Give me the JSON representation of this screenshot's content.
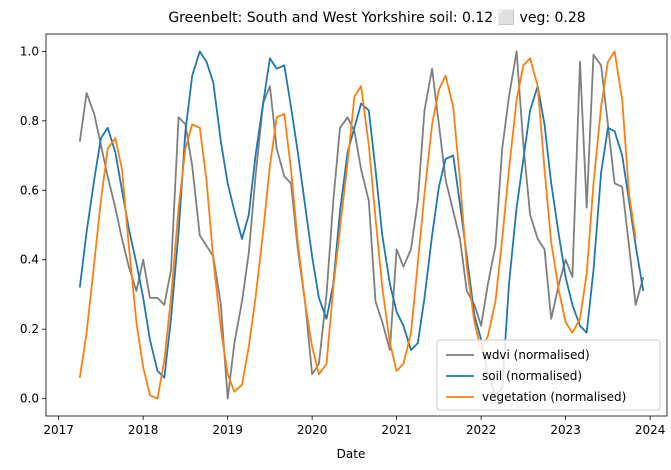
{
  "chart_data": {
    "type": "line",
    "title": "Greenbelt: South and West Yorkshire soil: 0.12 ⬜ veg: 0.28",
    "xlabel": "Date",
    "ylabel": "",
    "xlim": [
      2016.85,
      2024.2
    ],
    "ylim": [
      -0.05,
      1.05
    ],
    "x_ticks": [
      2017,
      2018,
      2019,
      2020,
      2021,
      2022,
      2023,
      2024
    ],
    "y_ticks": [
      0.0,
      0.2,
      0.4,
      0.6,
      0.8,
      1.0
    ],
    "x_tick_labels": [
      "2017",
      "2018",
      "2019",
      "2020",
      "2021",
      "2022",
      "2023",
      "2024"
    ],
    "y_tick_labels": [
      "0.0",
      "0.2",
      "0.4",
      "0.6",
      "0.8",
      "1.0"
    ],
    "legend_position": "lower-right",
    "grid": false,
    "series": [
      {
        "name": "wdvi (normalised)",
        "color": "#7f7f7f",
        "points": [
          [
            2017.25,
            0.74
          ],
          [
            2017.33,
            0.88
          ],
          [
            2017.42,
            0.82
          ],
          [
            2017.5,
            0.73
          ],
          [
            2017.58,
            0.64
          ],
          [
            2017.67,
            0.55
          ],
          [
            2017.75,
            0.46
          ],
          [
            2017.83,
            0.38
          ],
          [
            2017.92,
            0.31
          ],
          [
            2018.0,
            0.4
          ],
          [
            2018.08,
            0.29
          ],
          [
            2018.17,
            0.29
          ],
          [
            2018.25,
            0.27
          ],
          [
            2018.33,
            0.37
          ],
          [
            2018.42,
            0.81
          ],
          [
            2018.5,
            0.79
          ],
          [
            2018.58,
            0.67
          ],
          [
            2018.67,
            0.47
          ],
          [
            2018.75,
            0.44
          ],
          [
            2018.83,
            0.41
          ],
          [
            2018.92,
            0.27
          ],
          [
            2019.0,
            0.0
          ],
          [
            2019.08,
            0.16
          ],
          [
            2019.17,
            0.28
          ],
          [
            2019.25,
            0.42
          ],
          [
            2019.33,
            0.64
          ],
          [
            2019.42,
            0.85
          ],
          [
            2019.5,
            0.9
          ],
          [
            2019.58,
            0.72
          ],
          [
            2019.67,
            0.64
          ],
          [
            2019.75,
            0.62
          ],
          [
            2019.83,
            0.43
          ],
          [
            2019.92,
            0.27
          ],
          [
            2020.0,
            0.07
          ],
          [
            2020.08,
            0.1
          ],
          [
            2020.17,
            0.3
          ],
          [
            2020.25,
            0.57
          ],
          [
            2020.33,
            0.78
          ],
          [
            2020.42,
            0.81
          ],
          [
            2020.5,
            0.77
          ],
          [
            2020.58,
            0.66
          ],
          [
            2020.67,
            0.57
          ],
          [
            2020.75,
            0.28
          ],
          [
            2020.83,
            0.22
          ],
          [
            2020.92,
            0.14
          ],
          [
            2021.0,
            0.43
          ],
          [
            2021.08,
            0.38
          ],
          [
            2021.17,
            0.43
          ],
          [
            2021.25,
            0.57
          ],
          [
            2021.33,
            0.83
          ],
          [
            2021.42,
            0.95
          ],
          [
            2021.5,
            0.79
          ],
          [
            2021.58,
            0.63
          ],
          [
            2021.67,
            0.54
          ],
          [
            2021.75,
            0.46
          ],
          [
            2021.83,
            0.31
          ],
          [
            2021.92,
            0.27
          ],
          [
            2022.0,
            0.21
          ],
          [
            2022.08,
            0.33
          ],
          [
            2022.17,
            0.44
          ],
          [
            2022.25,
            0.72
          ],
          [
            2022.33,
            0.87
          ],
          [
            2022.42,
            1.0
          ],
          [
            2022.5,
            0.73
          ],
          [
            2022.58,
            0.53
          ],
          [
            2022.67,
            0.46
          ],
          [
            2022.75,
            0.43
          ],
          [
            2022.83,
            0.23
          ],
          [
            2022.92,
            0.33
          ],
          [
            2023.0,
            0.4
          ],
          [
            2023.08,
            0.35
          ],
          [
            2023.17,
            0.97
          ],
          [
            2023.25,
            0.55
          ],
          [
            2023.33,
            0.99
          ],
          [
            2023.42,
            0.96
          ],
          [
            2023.5,
            0.79
          ],
          [
            2023.58,
            0.62
          ],
          [
            2023.67,
            0.61
          ],
          [
            2023.75,
            0.44
          ],
          [
            2023.83,
            0.27
          ],
          [
            2023.92,
            0.35
          ]
        ]
      },
      {
        "name": "soil (normalised)",
        "color": "#1f77b4",
        "points": [
          [
            2017.25,
            0.32
          ],
          [
            2017.33,
            0.48
          ],
          [
            2017.42,
            0.63
          ],
          [
            2017.5,
            0.75
          ],
          [
            2017.58,
            0.78
          ],
          [
            2017.67,
            0.71
          ],
          [
            2017.75,
            0.6
          ],
          [
            2017.83,
            0.49
          ],
          [
            2017.92,
            0.39
          ],
          [
            2018.0,
            0.29
          ],
          [
            2018.08,
            0.17
          ],
          [
            2018.17,
            0.08
          ],
          [
            2018.25,
            0.06
          ],
          [
            2018.33,
            0.23
          ],
          [
            2018.42,
            0.48
          ],
          [
            2018.5,
            0.77
          ],
          [
            2018.58,
            0.93
          ],
          [
            2018.67,
            1.0
          ],
          [
            2018.75,
            0.97
          ],
          [
            2018.83,
            0.91
          ],
          [
            2018.92,
            0.74
          ],
          [
            2019.0,
            0.62
          ],
          [
            2019.08,
            0.54
          ],
          [
            2019.17,
            0.46
          ],
          [
            2019.25,
            0.53
          ],
          [
            2019.33,
            0.7
          ],
          [
            2019.42,
            0.85
          ],
          [
            2019.5,
            0.98
          ],
          [
            2019.58,
            0.95
          ],
          [
            2019.67,
            0.96
          ],
          [
            2019.75,
            0.84
          ],
          [
            2019.83,
            0.71
          ],
          [
            2019.92,
            0.55
          ],
          [
            2020.0,
            0.41
          ],
          [
            2020.08,
            0.29
          ],
          [
            2020.17,
            0.23
          ],
          [
            2020.25,
            0.33
          ],
          [
            2020.33,
            0.54
          ],
          [
            2020.42,
            0.71
          ],
          [
            2020.5,
            0.78
          ],
          [
            2020.58,
            0.85
          ],
          [
            2020.67,
            0.83
          ],
          [
            2020.75,
            0.66
          ],
          [
            2020.83,
            0.47
          ],
          [
            2020.92,
            0.33
          ],
          [
            2021.0,
            0.25
          ],
          [
            2021.08,
            0.21
          ],
          [
            2021.17,
            0.14
          ],
          [
            2021.25,
            0.16
          ],
          [
            2021.33,
            0.29
          ],
          [
            2021.42,
            0.47
          ],
          [
            2021.5,
            0.61
          ],
          [
            2021.58,
            0.69
          ],
          [
            2021.67,
            0.7
          ],
          [
            2021.75,
            0.56
          ],
          [
            2021.83,
            0.41
          ],
          [
            2021.92,
            0.24
          ],
          [
            2022.0,
            0.17
          ],
          [
            2022.08,
            0.07
          ],
          [
            2022.17,
            0.01
          ],
          [
            2022.25,
            0.03
          ],
          [
            2022.33,
            0.33
          ],
          [
            2022.42,
            0.55
          ],
          [
            2022.5,
            0.69
          ],
          [
            2022.58,
            0.83
          ],
          [
            2022.67,
            0.9
          ],
          [
            2022.75,
            0.79
          ],
          [
            2022.83,
            0.62
          ],
          [
            2022.92,
            0.47
          ],
          [
            2023.0,
            0.35
          ],
          [
            2023.08,
            0.27
          ],
          [
            2023.17,
            0.21
          ],
          [
            2023.25,
            0.19
          ],
          [
            2023.33,
            0.37
          ],
          [
            2023.42,
            0.65
          ],
          [
            2023.5,
            0.78
          ],
          [
            2023.58,
            0.77
          ],
          [
            2023.67,
            0.7
          ],
          [
            2023.75,
            0.57
          ],
          [
            2023.83,
            0.44
          ],
          [
            2023.92,
            0.31
          ]
        ]
      },
      {
        "name": "vegetation (normalised)",
        "color": "#ff7f0e",
        "points": [
          [
            2017.25,
            0.06
          ],
          [
            2017.33,
            0.19
          ],
          [
            2017.42,
            0.39
          ],
          [
            2017.5,
            0.57
          ],
          [
            2017.58,
            0.72
          ],
          [
            2017.67,
            0.75
          ],
          [
            2017.75,
            0.66
          ],
          [
            2017.83,
            0.44
          ],
          [
            2017.92,
            0.22
          ],
          [
            2018.0,
            0.09
          ],
          [
            2018.08,
            0.01
          ],
          [
            2018.17,
            0.0
          ],
          [
            2018.25,
            0.11
          ],
          [
            2018.33,
            0.29
          ],
          [
            2018.42,
            0.55
          ],
          [
            2018.5,
            0.72
          ],
          [
            2018.58,
            0.79
          ],
          [
            2018.67,
            0.78
          ],
          [
            2018.75,
            0.63
          ],
          [
            2018.83,
            0.4
          ],
          [
            2018.92,
            0.2
          ],
          [
            2019.0,
            0.07
          ],
          [
            2019.08,
            0.02
          ],
          [
            2019.17,
            0.04
          ],
          [
            2019.25,
            0.15
          ],
          [
            2019.33,
            0.29
          ],
          [
            2019.42,
            0.48
          ],
          [
            2019.5,
            0.67
          ],
          [
            2019.58,
            0.81
          ],
          [
            2019.67,
            0.82
          ],
          [
            2019.75,
            0.66
          ],
          [
            2019.83,
            0.45
          ],
          [
            2019.92,
            0.27
          ],
          [
            2020.0,
            0.15
          ],
          [
            2020.08,
            0.07
          ],
          [
            2020.17,
            0.1
          ],
          [
            2020.25,
            0.32
          ],
          [
            2020.33,
            0.49
          ],
          [
            2020.42,
            0.68
          ],
          [
            2020.5,
            0.87
          ],
          [
            2020.58,
            0.9
          ],
          [
            2020.67,
            0.73
          ],
          [
            2020.75,
            0.52
          ],
          [
            2020.83,
            0.32
          ],
          [
            2020.92,
            0.16
          ],
          [
            2021.0,
            0.08
          ],
          [
            2021.08,
            0.1
          ],
          [
            2021.17,
            0.19
          ],
          [
            2021.25,
            0.39
          ],
          [
            2021.33,
            0.59
          ],
          [
            2021.42,
            0.79
          ],
          [
            2021.5,
            0.89
          ],
          [
            2021.58,
            0.93
          ],
          [
            2021.67,
            0.84
          ],
          [
            2021.75,
            0.63
          ],
          [
            2021.83,
            0.38
          ],
          [
            2021.92,
            0.22
          ],
          [
            2022.0,
            0.14
          ],
          [
            2022.08,
            0.18
          ],
          [
            2022.17,
            0.28
          ],
          [
            2022.25,
            0.46
          ],
          [
            2022.33,
            0.66
          ],
          [
            2022.42,
            0.86
          ],
          [
            2022.5,
            0.96
          ],
          [
            2022.58,
            0.98
          ],
          [
            2022.67,
            0.9
          ],
          [
            2022.75,
            0.66
          ],
          [
            2022.83,
            0.45
          ],
          [
            2022.92,
            0.31
          ],
          [
            2023.0,
            0.22
          ],
          [
            2023.08,
            0.19
          ],
          [
            2023.17,
            0.23
          ],
          [
            2023.25,
            0.36
          ],
          [
            2023.33,
            0.62
          ],
          [
            2023.42,
            0.84
          ],
          [
            2023.5,
            0.97
          ],
          [
            2023.58,
            1.0
          ],
          [
            2023.67,
            0.86
          ],
          [
            2023.75,
            0.59
          ],
          [
            2023.83,
            0.46
          ]
        ]
      }
    ]
  }
}
